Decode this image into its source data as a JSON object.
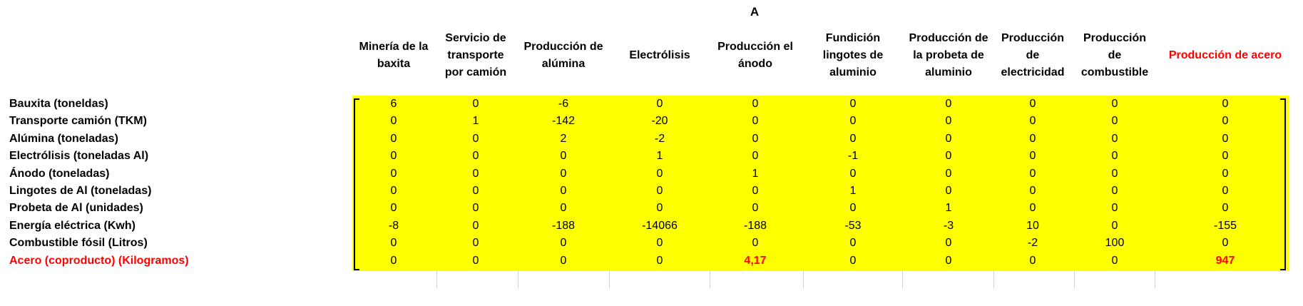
{
  "matrix_label": "A",
  "columns": [
    {
      "label": "Minería de la\nbaxita",
      "highlight": false
    },
    {
      "label": "Servicio de\ntransporte\npor camión",
      "highlight": false
    },
    {
      "label": "Producción de\nalúmina",
      "highlight": false
    },
    {
      "label": "Electrólisis",
      "highlight": false
    },
    {
      "label": "Producción el\nánodo",
      "highlight": false
    },
    {
      "label": "Fundición\nlingotes de\naluminio",
      "highlight": false
    },
    {
      "label": "Producción de\nla probeta de\naluminio",
      "highlight": false
    },
    {
      "label": "Producción\nde\nelectricidad",
      "highlight": false
    },
    {
      "label": "Producción\nde\ncombustible",
      "highlight": false
    },
    {
      "label": "Producción de acero",
      "highlight": true
    }
  ],
  "rows": [
    {
      "label": "Bauxita (toneldas)",
      "highlight": false,
      "values": [
        "6",
        "0",
        "-6",
        "0",
        "0",
        "0",
        "0",
        "0",
        "0",
        "0"
      ]
    },
    {
      "label": "Transporte camión (TKM)",
      "highlight": false,
      "values": [
        "0",
        "1",
        "-142",
        "-20",
        "0",
        "0",
        "0",
        "0",
        "0",
        "0"
      ]
    },
    {
      "label": "Alúmina (toneladas)",
      "highlight": false,
      "values": [
        "0",
        "0",
        "2",
        "-2",
        "0",
        "0",
        "0",
        "0",
        "0",
        "0"
      ]
    },
    {
      "label": "Electrólisis (toneladas Al)",
      "highlight": false,
      "values": [
        "0",
        "0",
        "0",
        "1",
        "0",
        "-1",
        "0",
        "0",
        "0",
        "0"
      ]
    },
    {
      "label": "Ánodo (toneladas)",
      "highlight": false,
      "values": [
        "0",
        "0",
        "0",
        "0",
        "1",
        "0",
        "0",
        "0",
        "0",
        "0"
      ]
    },
    {
      "label": "Lingotes de Al (toneladas)",
      "highlight": false,
      "values": [
        "0",
        "0",
        "0",
        "0",
        "0",
        "1",
        "0",
        "0",
        "0",
        "0"
      ]
    },
    {
      "label": "Probeta de Al (unidades)",
      "highlight": false,
      "values": [
        "0",
        "0",
        "0",
        "0",
        "0",
        "0",
        "1",
        "0",
        "0",
        "0"
      ]
    },
    {
      "label": "Energía eléctrica (Kwh)",
      "highlight": false,
      "values": [
        "-8",
        "0",
        "-188",
        "-14066",
        "-188",
        "-53",
        "-3",
        "10",
        "0",
        "-155"
      ]
    },
    {
      "label": "Combustible fósil (Litros)",
      "highlight": false,
      "values": [
        "0",
        "0",
        "0",
        "0",
        "0",
        "0",
        "0",
        "-2",
        "100",
        "0"
      ]
    },
    {
      "label": "Acero  (coproducto) (Kilogramos)",
      "highlight": true,
      "values": [
        "0",
        "0",
        "0",
        "0",
        "4,17",
        "0",
        "0",
        "0",
        "0",
        "947"
      ]
    }
  ],
  "highlighted_cells": [
    [
      9,
      4
    ],
    [
      9,
      9
    ]
  ],
  "colors": {
    "highlight_fill": "#ffff00",
    "emphasis_text": "#ff0000"
  }
}
